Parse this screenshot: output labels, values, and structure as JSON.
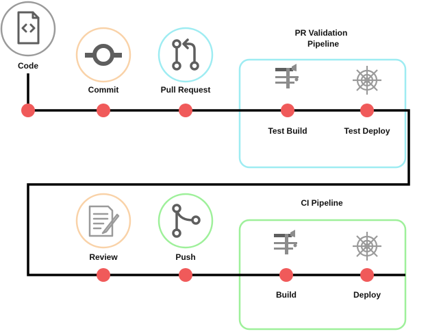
{
  "colors": {
    "line": "#000000",
    "dot": "#f05a5a",
    "icon_gray": "#8c8c8c",
    "icon_dark": "#5e5e5e",
    "ring_code": "#9a9a9a",
    "ring_commit": "#f9d2a8",
    "ring_pr": "#9eecf2",
    "ring_review": "#f9d2a8",
    "ring_push": "#9ef09a",
    "box_pr": "#9eecf2",
    "box_ci": "#9ef09a"
  },
  "stages": {
    "code": {
      "label": "Code",
      "icon": "file-code-icon"
    },
    "commit": {
      "label": "Commit",
      "icon": "commit-icon"
    },
    "pull_request": {
      "label": "Pull Request",
      "icon": "pull-request-icon"
    },
    "review": {
      "label": "Review",
      "icon": "document-edit-icon"
    },
    "push": {
      "label": "Push",
      "icon": "branch-icon"
    }
  },
  "pipelines": {
    "pr_validation": {
      "title_line1": "PR Validation",
      "title_line2": "Pipeline",
      "steps": [
        {
          "label": "Test Build",
          "icon": "build-tools-icon"
        },
        {
          "label": "Test Deploy",
          "icon": "helm-wheel-icon"
        }
      ]
    },
    "ci": {
      "title": "CI Pipeline",
      "steps": [
        {
          "label": "Build",
          "icon": "build-tools-icon"
        },
        {
          "label": "Deploy",
          "icon": "helm-wheel-icon"
        }
      ]
    }
  }
}
